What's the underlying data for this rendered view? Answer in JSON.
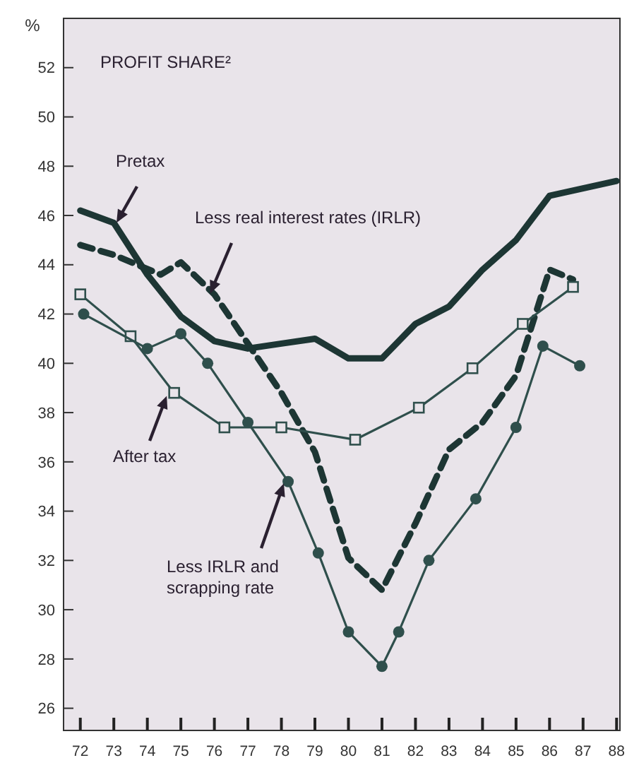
{
  "chart_data": {
    "type": "line",
    "title": "PROFIT SHARE²",
    "ylabel": "%",
    "xlim": [
      71.5,
      88.1
    ],
    "ylim": [
      25.1,
      54
    ],
    "xticks": [
      72,
      73,
      74,
      75,
      76,
      77,
      78,
      79,
      80,
      81,
      82,
      83,
      84,
      85,
      86,
      87,
      88
    ],
    "yticks": [
      26,
      28,
      30,
      32,
      34,
      36,
      38,
      40,
      42,
      44,
      46,
      48,
      50,
      52
    ],
    "grid": false,
    "series": [
      {
        "name": "Pretax",
        "color": "#1d3634",
        "marker": "none",
        "line_style": "solid",
        "x": [
          72,
          73,
          74,
          75,
          76,
          77,
          78,
          79,
          80,
          81,
          82,
          83,
          84,
          85,
          86,
          87,
          88
        ],
        "values": [
          46.2,
          45.7,
          43.6,
          41.9,
          40.9,
          40.6,
          40.8,
          41.0,
          40.2,
          40.2,
          41.6,
          42.3,
          43.8,
          45.0,
          46.8,
          47.1,
          47.4
        ]
      },
      {
        "name": "Less real interest rates (IRLR)",
        "color": "#1d3634",
        "marker": "none",
        "line_style": "dashed",
        "x": [
          72,
          73,
          74.4,
          75,
          76,
          77,
          78,
          79,
          80,
          81,
          82,
          83,
          84,
          85,
          86,
          86.7
        ],
        "values": [
          44.8,
          44.4,
          43.6,
          44.1,
          42.8,
          40.8,
          38.8,
          36.4,
          32.1,
          30.8,
          33.5,
          36.5,
          37.6,
          39.5,
          43.8,
          43.4
        ]
      },
      {
        "name": "After tax",
        "color": "#2f4f4c",
        "marker": "square",
        "line_style": "solid",
        "x": [
          72,
          73.5,
          74.8,
          76.3,
          78,
          80.2,
          82.1,
          83.7,
          85.2,
          86.7
        ],
        "values": [
          42.8,
          41.1,
          38.8,
          37.4,
          37.4,
          36.9,
          38.2,
          39.8,
          41.6,
          43.1
        ]
      },
      {
        "name": "Less IRLR and scrapping rate",
        "color": "#2f4f4c",
        "marker": "circle",
        "line_style": "solid",
        "x": [
          72.1,
          74,
          75,
          75.8,
          77,
          78.2,
          79.1,
          80,
          81,
          81.5,
          82.4,
          83.8,
          85,
          85.8,
          86.9
        ],
        "values": [
          42.0,
          40.6,
          41.2,
          40.0,
          37.6,
          35.2,
          32.3,
          29.1,
          27.7,
          29.1,
          32.0,
          34.5,
          37.4,
          40.7,
          39.9
        ]
      }
    ]
  }
}
